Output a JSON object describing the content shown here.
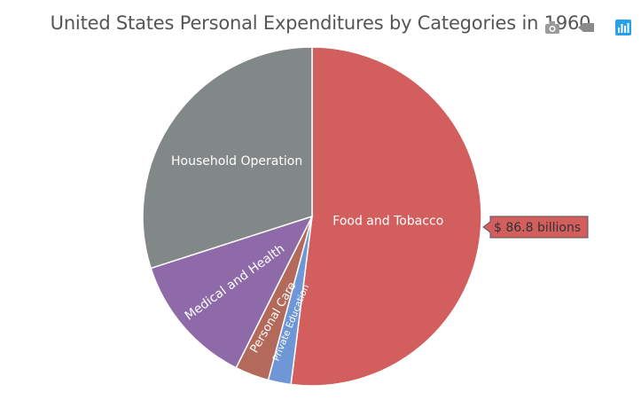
{
  "toolbar": {
    "icons": [
      "camera-icon",
      "back-arrow-icon",
      "bar-chart-icon"
    ]
  },
  "chart_data": {
    "type": "pie",
    "title": "United States Personal Expenditures by Categories in 1960",
    "units": "$ billions",
    "slices": [
      {
        "name": "Food and Tobacco",
        "value": 86.8,
        "color": "#d35e5e"
      },
      {
        "name": "Private Education",
        "value": 3.64,
        "color": "#6f97d6"
      },
      {
        "name": "Personal Care",
        "value": 5.4,
        "color": "#b46a5b"
      },
      {
        "name": "Medical and Health",
        "value": 21.1,
        "color": "#8f6aa8"
      },
      {
        "name": "Household Operation",
        "value": 50.0,
        "color": "#828787"
      }
    ],
    "tooltip": {
      "prefix": "$",
      "value": "86.8",
      "suffix": "billions",
      "slice": "Food and Tobacco"
    }
  }
}
